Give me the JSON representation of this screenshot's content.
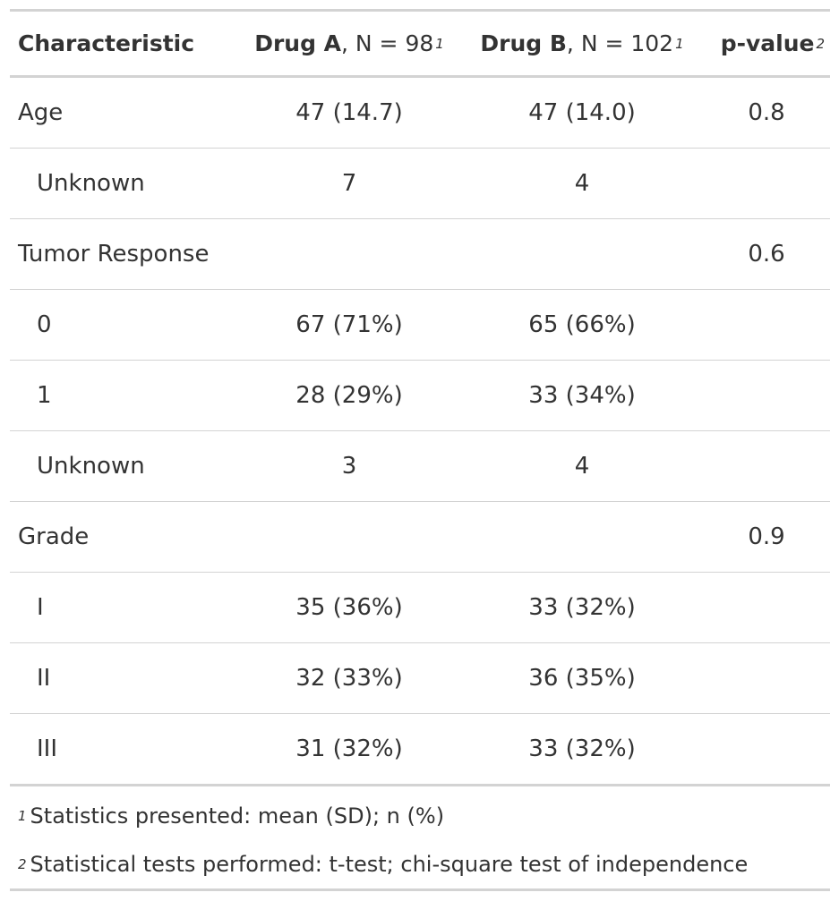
{
  "header": {
    "characteristic": "Characteristic",
    "drug_a_name": "Drug A",
    "drug_a_n": ", N = 98",
    "drug_a_mark": "1",
    "drug_b_name": "Drug B",
    "drug_b_n": ", N = 102",
    "drug_b_mark": "1",
    "pvalue": "p-value",
    "pvalue_mark": "2"
  },
  "rows": [
    {
      "label": "Age",
      "a": "47 (14.7)",
      "b": "47 (14.0)",
      "p": "0.8"
    },
    {
      "label": "Unknown",
      "a": "7",
      "b": "4",
      "p": ""
    },
    {
      "label": "Tumor Response",
      "a": "",
      "b": "",
      "p": "0.6"
    },
    {
      "label": "0",
      "a": "67 (71%)",
      "b": "65 (66%)",
      "p": ""
    },
    {
      "label": "1",
      "a": "28 (29%)",
      "b": "33 (34%)",
      "p": ""
    },
    {
      "label": "Unknown",
      "a": "3",
      "b": "4",
      "p": ""
    },
    {
      "label": "Grade",
      "a": "",
      "b": "",
      "p": "0.9"
    },
    {
      "label": "I",
      "a": "35 (36%)",
      "b": "33 (32%)",
      "p": ""
    },
    {
      "label": "II",
      "a": "32 (33%)",
      "b": "36 (35%)",
      "p": ""
    },
    {
      "label": "III",
      "a": "31 (32%)",
      "b": "33 (32%)",
      "p": ""
    }
  ],
  "footnotes": [
    {
      "mark": "1",
      "text": "Statistics presented: mean (SD); n (%)"
    },
    {
      "mark": "2",
      "text": "Statistical tests performed: t-test; chi-square test of independence"
    }
  ]
}
